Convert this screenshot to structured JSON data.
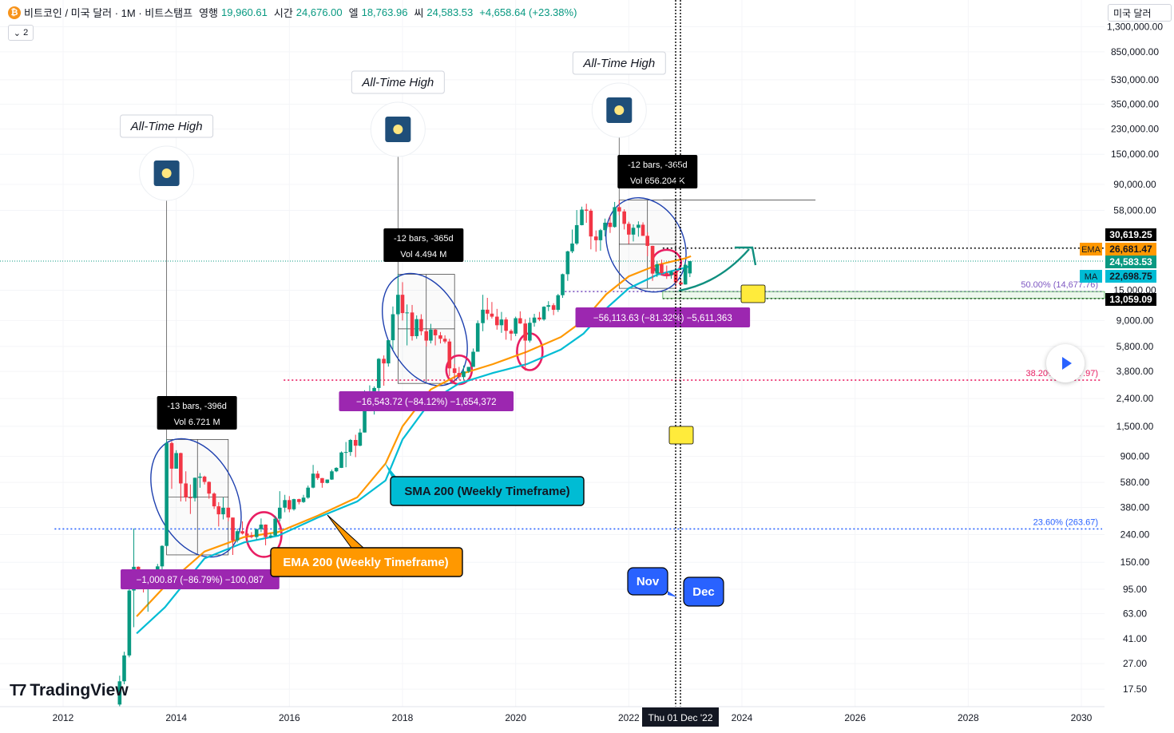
{
  "header": {
    "symbol": "비트코인 / 미국 달러 · 1M · 비트스탬프",
    "open_label": "영행",
    "open": "19,960.61",
    "high_label": "시간",
    "high": "24,676.00",
    "low_label": "엘",
    "low": "18,763.96",
    "close_label": "씨",
    "close": "24,583.53",
    "change": "+4,658.64 (+23.38%)",
    "collapse_label": "2",
    "btc_glyph": "₿"
  },
  "currency_button": "미국 달러",
  "logo_text": "TradingView",
  "price_axis": {
    "ticks": [
      "1,300,000.00",
      "850,000.00",
      "530,000.00",
      "350,000.00",
      "230,000.00",
      "150,000.00",
      "90,000.00",
      "58,000.00",
      "15,000.00",
      "9,000.00",
      "5,800.00",
      "3,800.00",
      "2,400.00",
      "1,500.00",
      "900.00",
      "580.00",
      "380.00",
      "240.00",
      "150.00",
      "95.00",
      "63.00",
      "41.00",
      "27.00",
      "17.50"
    ],
    "badges": [
      {
        "text": "30,619.25",
        "bg": "#000000",
        "fg": "#ffffff"
      },
      {
        "text": "26,681.47",
        "bg": "#ff9800",
        "fg": "#131722",
        "tag": "EMA"
      },
      {
        "text": "24,583.53",
        "bg": "#089981",
        "fg": "#ffffff"
      },
      {
        "text": "22,698.75",
        "bg": "#00bcd4",
        "fg": "#131722",
        "tag": "MA"
      },
      {
        "text": "13,059.09",
        "bg": "#000000",
        "fg": "#ffffff"
      }
    ]
  },
  "time_axis": {
    "labels": [
      "2012",
      "2014",
      "2016",
      "2018",
      "2020",
      "2022",
      "2024",
      "2026",
      "2028",
      "2030"
    ],
    "cursor_label": "Thu 01 Dec '22"
  },
  "annotations": {
    "ath": [
      "All-Time High",
      "All-Time High",
      "All-Time High"
    ],
    "ath_icon": "sparkle-icon",
    "measures": [
      {
        "bars": "-13 bars, -396d",
        "vol": "Vol 6.721 M",
        "change": "−1,000.87 (−86.79%) −100,087"
      },
      {
        "bars": "-12 bars, -365d",
        "vol": "Vol 4.494 M",
        "change": "−16,543.72 (−84.12%) −1,654,372"
      },
      {
        "bars": "-12 bars, -365d",
        "vol": "Vol 656.204 K",
        "change": "−56,113.63 (−81.32%) −5,611,363"
      }
    ],
    "sma_label": "SMA 200 (Weekly Timeframe)",
    "ema_label": "EMA 200 (Weekly Timeframe)",
    "nov": "Nov",
    "dec": "Dec",
    "fib": [
      {
        "text": "50.00% (14,677.76)",
        "color": "#7e57c2"
      },
      {
        "text": "38.20% (3,277.97)",
        "color": "#e91e63"
      },
      {
        "text": "23.60% (263.67)",
        "color": "#2962ff"
      }
    ]
  },
  "colors": {
    "up": "#089981",
    "down": "#f23645",
    "ema": "#ff9800",
    "sma": "#00bcd4",
    "ellipse": "#1e40af",
    "circle": "#e91e63",
    "measure": "#9c27b0",
    "arrow": "#0f8f7f"
  },
  "chart_data": {
    "type": "candlestick",
    "title": "비트코인 / 미국 달러 · 1M · 비트스탬프",
    "scale": "log",
    "ylim": [
      15,
      1500000
    ],
    "xlim": [
      2011.75,
      2030.3
    ],
    "x_ticks": [
      2012,
      2014,
      2016,
      2018,
      2020,
      2022,
      2024,
      2026,
      2028,
      2030
    ],
    "candles": [
      [
        2013.0,
        13.5,
        22,
        13,
        20
      ],
      [
        2013.08,
        20,
        33,
        19,
        31
      ],
      [
        2013.17,
        31,
        95,
        30,
        93
      ],
      [
        2013.25,
        93,
        266,
        50,
        139
      ],
      [
        2013.33,
        139,
        140,
        95,
        128
      ],
      [
        2013.42,
        128,
        130,
        90,
        97
      ],
      [
        2013.5,
        97,
        110,
        65,
        106
      ],
      [
        2013.58,
        106,
        130,
        100,
        129
      ],
      [
        2013.67,
        129,
        146,
        120,
        140
      ],
      [
        2013.75,
        140,
        200,
        118,
        198
      ],
      [
        2013.83,
        198,
        1200,
        195,
        1130
      ],
      [
        2013.92,
        1130,
        1163,
        520,
        732
      ],
      [
        2014.0,
        732,
        1000,
        740,
        953
      ],
      [
        2014.08,
        953,
        960,
        420,
        570
      ],
      [
        2014.17,
        570,
        700,
        420,
        450
      ],
      [
        2014.25,
        450,
        560,
        340,
        445
      ],
      [
        2014.33,
        445,
        630,
        420,
        627
      ],
      [
        2014.42,
        627,
        680,
        530,
        640
      ],
      [
        2014.5,
        640,
        650,
        560,
        585
      ],
      [
        2014.58,
        585,
        590,
        440,
        480
      ],
      [
        2014.67,
        480,
        490,
        370,
        387
      ],
      [
        2014.75,
        387,
        415,
        275,
        338
      ],
      [
        2014.83,
        338,
        450,
        310,
        378
      ],
      [
        2014.92,
        378,
        380,
        300,
        320
      ],
      [
        2015.0,
        320,
        320,
        170,
        217
      ],
      [
        2015.08,
        217,
        265,
        210,
        254
      ],
      [
        2015.17,
        254,
        300,
        240,
        244
      ],
      [
        2015.25,
        244,
        250,
        210,
        236
      ],
      [
        2015.33,
        236,
        250,
        225,
        230
      ],
      [
        2015.42,
        230,
        265,
        220,
        263
      ],
      [
        2015.5,
        263,
        315,
        250,
        284
      ],
      [
        2015.58,
        284,
        285,
        200,
        230
      ],
      [
        2015.67,
        230,
        245,
        225,
        236
      ],
      [
        2015.75,
        236,
        330,
        235,
        314
      ],
      [
        2015.83,
        314,
        500,
        300,
        378
      ],
      [
        2015.92,
        378,
        470,
        350,
        430
      ],
      [
        2016.0,
        430,
        460,
        350,
        368
      ],
      [
        2016.08,
        368,
        440,
        360,
        437
      ],
      [
        2016.17,
        437,
        440,
        400,
        416
      ],
      [
        2016.25,
        416,
        470,
        410,
        448
      ],
      [
        2016.33,
        448,
        550,
        440,
        531
      ],
      [
        2016.42,
        531,
        780,
        525,
        673
      ],
      [
        2016.5,
        673,
        705,
        605,
        624
      ],
      [
        2016.58,
        624,
        625,
        530,
        575
      ],
      [
        2016.67,
        575,
        610,
        570,
        609
      ],
      [
        2016.75,
        609,
        720,
        605,
        700
      ],
      [
        2016.83,
        700,
        750,
        690,
        742
      ],
      [
        2016.92,
        742,
        980,
        740,
        963
      ],
      [
        2017.0,
        963,
        1150,
        750,
        970
      ],
      [
        2017.08,
        970,
        1210,
        910,
        1190
      ],
      [
        2017.17,
        1190,
        1300,
        890,
        1080
      ],
      [
        2017.25,
        1080,
        1440,
        1070,
        1350
      ],
      [
        2017.33,
        1350,
        2760,
        1350,
        2300
      ],
      [
        2017.42,
        2300,
        3000,
        2100,
        2500
      ],
      [
        2017.5,
        2500,
        2950,
        1830,
        2870
      ],
      [
        2017.58,
        2870,
        4760,
        2700,
        4700
      ],
      [
        2017.67,
        4700,
        4980,
        2980,
        4350
      ],
      [
        2017.75,
        4350,
        6450,
        4120,
        6440
      ],
      [
        2017.83,
        6440,
        11400,
        5500,
        10000
      ],
      [
        2017.92,
        10000,
        19666,
        9700,
        13900
      ],
      [
        2018.0,
        13900,
        17200,
        9000,
        10200
      ],
      [
        2018.08,
        10200,
        11800,
        5900,
        10300
      ],
      [
        2018.17,
        10300,
        11700,
        6400,
        6900
      ],
      [
        2018.25,
        6900,
        9800,
        6600,
        9200
      ],
      [
        2018.33,
        9200,
        10000,
        7000,
        7500
      ],
      [
        2018.42,
        7500,
        7800,
        5800,
        6400
      ],
      [
        2018.5,
        6400,
        8500,
        6100,
        7700
      ],
      [
        2018.58,
        7700,
        7800,
        5900,
        7000
      ],
      [
        2018.67,
        7000,
        7400,
        6100,
        6600
      ],
      [
        2018.75,
        6600,
        7000,
        6100,
        6300
      ],
      [
        2018.83,
        6300,
        6600,
        3500,
        4000
      ],
      [
        2018.92,
        4000,
        4300,
        3100,
        3700
      ],
      [
        2019.0,
        3700,
        4100,
        3300,
        3450
      ],
      [
        2019.08,
        3450,
        4200,
        3300,
        3800
      ],
      [
        2019.17,
        3800,
        4100,
        3700,
        4100
      ],
      [
        2019.25,
        4100,
        5600,
        4100,
        5300
      ],
      [
        2019.33,
        5300,
        9000,
        5300,
        8600
      ],
      [
        2019.42,
        8600,
        13900,
        7500,
        10800
      ],
      [
        2019.5,
        10800,
        13200,
        9100,
        10100
      ],
      [
        2019.58,
        10100,
        12300,
        9300,
        9600
      ],
      [
        2019.67,
        9600,
        10950,
        7700,
        8300
      ],
      [
        2019.75,
        8300,
        10400,
        7300,
        9150
      ],
      [
        2019.83,
        9150,
        9500,
        6500,
        7550
      ],
      [
        2019.92,
        7550,
        7750,
        6400,
        7200
      ],
      [
        2020.0,
        7200,
        9600,
        6900,
        9350
      ],
      [
        2020.08,
        9350,
        10500,
        8500,
        8550
      ],
      [
        2020.17,
        8550,
        9200,
        3850,
        6400
      ],
      [
        2020.25,
        6400,
        9450,
        6200,
        8650
      ],
      [
        2020.33,
        8650,
        10070,
        8100,
        9450
      ],
      [
        2020.42,
        9450,
        10400,
        8900,
        9150
      ],
      [
        2020.5,
        9150,
        11450,
        8950,
        11350
      ],
      [
        2020.58,
        11350,
        12470,
        10550,
        11650
      ],
      [
        2020.67,
        11650,
        12050,
        9850,
        10780
      ],
      [
        2020.75,
        10780,
        14100,
        10400,
        13800
      ],
      [
        2020.83,
        13800,
        19900,
        13200,
        19700
      ],
      [
        2020.92,
        19700,
        29300,
        17600,
        28990
      ],
      [
        2021.0,
        28990,
        41950,
        28130,
        33100
      ],
      [
        2021.08,
        33100,
        58350,
        32300,
        45200
      ],
      [
        2021.17,
        45200,
        61800,
        45000,
        58800
      ],
      [
        2021.25,
        58800,
        64900,
        47000,
        57700
      ],
      [
        2021.33,
        57700,
        59500,
        30000,
        37300
      ],
      [
        2021.42,
        37300,
        41300,
        28800,
        35000
      ],
      [
        2021.5,
        35000,
        42400,
        29300,
        41500
      ],
      [
        2021.58,
        41500,
        50500,
        37300,
        47100
      ],
      [
        2021.67,
        47100,
        52900,
        39600,
        43800
      ],
      [
        2021.75,
        43800,
        66900,
        43300,
        61300
      ],
      [
        2021.83,
        61300,
        69000,
        53500,
        57000
      ],
      [
        2021.92,
        57000,
        59100,
        42000,
        46200
      ],
      [
        2022.0,
        46200,
        47900,
        32900,
        38500
      ],
      [
        2022.08,
        38500,
        45800,
        34300,
        43200
      ],
      [
        2022.17,
        43200,
        48200,
        37200,
        45500
      ],
      [
        2022.25,
        45500,
        47400,
        37700,
        37700
      ],
      [
        2022.33,
        37700,
        40000,
        26700,
        31800
      ],
      [
        2022.42,
        31800,
        31900,
        17600,
        19900
      ],
      [
        2022.5,
        19900,
        24700,
        18800,
        23300
      ],
      [
        2022.58,
        23300,
        25200,
        19600,
        20050
      ],
      [
        2022.67,
        20050,
        22800,
        18200,
        19430
      ],
      [
        2022.75,
        19430,
        21000,
        18200,
        20500
      ],
      [
        2022.83,
        20500,
        21500,
        15500,
        17150
      ],
      [
        2022.92,
        17150,
        18400,
        16300,
        16550
      ],
      [
        2023.0,
        16550,
        23900,
        16500,
        23100
      ],
      [
        2023.08,
        19960.61,
        24676,
        18763.96,
        24583.53
      ]
    ],
    "ema200": [
      [
        2013.3,
        60
      ],
      [
        2013.8,
        100
      ],
      [
        2014.5,
        180
      ],
      [
        2015.2,
        230
      ],
      [
        2015.8,
        250
      ],
      [
        2016.5,
        330
      ],
      [
        2017.2,
        450
      ],
      [
        2017.7,
        800
      ],
      [
        2018.0,
        1500
      ],
      [
        2018.5,
        2800
      ],
      [
        2019.0,
        3600
      ],
      [
        2019.6,
        4300
      ],
      [
        2020.2,
        5300
      ],
      [
        2020.8,
        6800
      ],
      [
        2021.2,
        9000
      ],
      [
        2021.6,
        14000
      ],
      [
        2022.0,
        19000
      ],
      [
        2022.5,
        23000
      ],
      [
        2023.0,
        25800
      ],
      [
        2023.1,
        26681.47
      ]
    ],
    "sma200": [
      [
        2013.3,
        45
      ],
      [
        2013.8,
        70
      ],
      [
        2014.5,
        160
      ],
      [
        2015.2,
        210
      ],
      [
        2015.8,
        235
      ],
      [
        2016.5,
        320
      ],
      [
        2017.2,
        420
      ],
      [
        2017.7,
        600
      ],
      [
        2018.0,
        1200
      ],
      [
        2018.5,
        2300
      ],
      [
        2019.0,
        3100
      ],
      [
        2019.6,
        3700
      ],
      [
        2020.2,
        4300
      ],
      [
        2020.8,
        5500
      ],
      [
        2021.2,
        7200
      ],
      [
        2021.6,
        11000
      ],
      [
        2022.0,
        15500
      ],
      [
        2022.5,
        19500
      ],
      [
        2023.0,
        22000
      ],
      [
        2023.1,
        22698.75
      ]
    ],
    "fib_levels": [
      {
        "ratio": "50.00%",
        "value": 14677.76
      },
      {
        "ratio": "38.20%",
        "value": 3277.97
      },
      {
        "ratio": "23.60%",
        "value": 263.67
      }
    ],
    "horizontal_lines": [
      30619.25,
      13059.09
    ],
    "cursor_date": "Thu 01 Dec '22"
  }
}
